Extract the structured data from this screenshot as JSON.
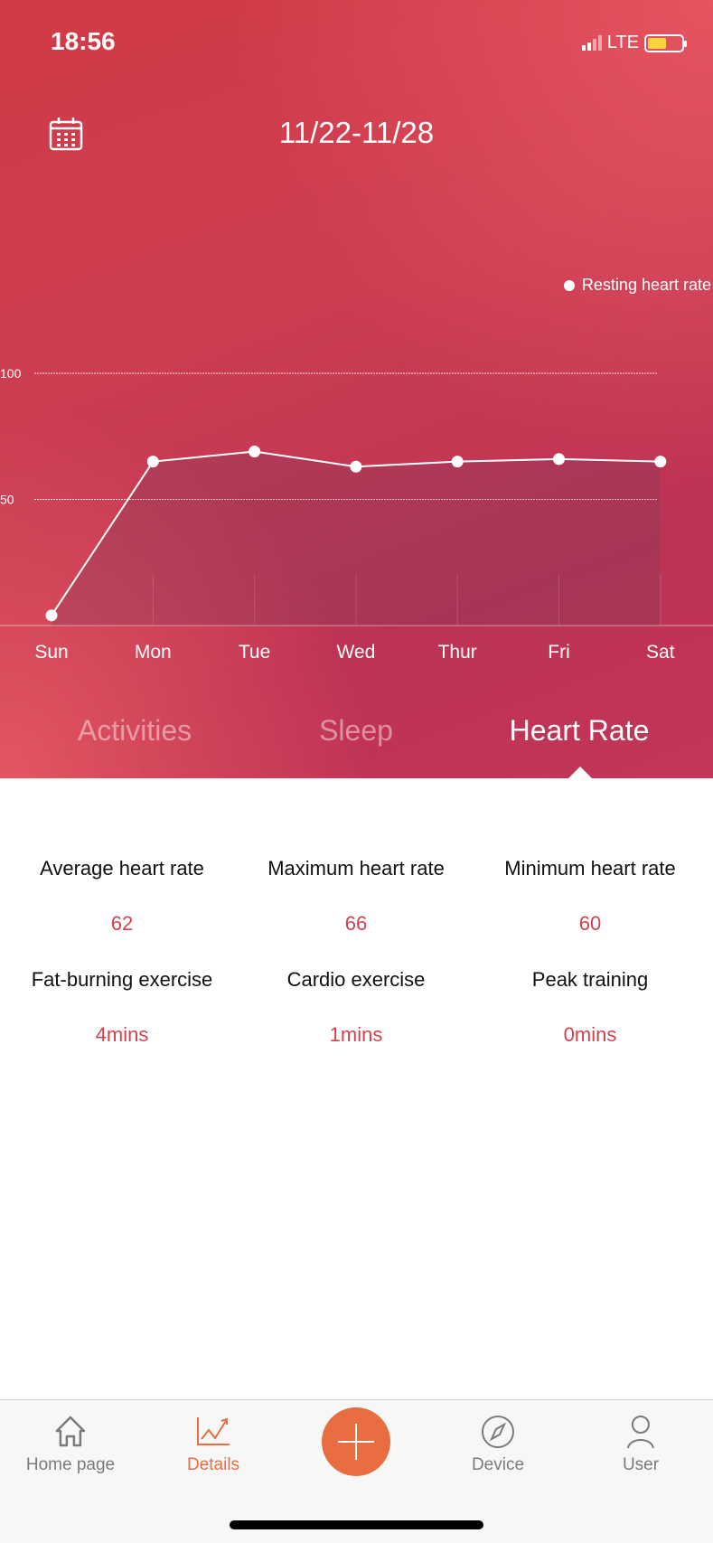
{
  "status_bar": {
    "time": "18:56",
    "network": "LTE",
    "battery_color": "#f7d33e"
  },
  "header": {
    "date_range": "11/22-11/28",
    "calendar_icon": "calendar-icon",
    "legend": "Resting heart rate"
  },
  "chart_data": {
    "type": "line",
    "categories": [
      "Sun",
      "Mon",
      "Tue",
      "Wed",
      "Thur",
      "Fri",
      "Sat"
    ],
    "series": [
      {
        "name": "Resting heart rate",
        "values": [
          4,
          65,
          69,
          63,
          65,
          66,
          65
        ]
      }
    ],
    "yticks": [
      100,
      50
    ],
    "ylim": [
      0,
      100
    ],
    "grid": true,
    "legend_position": "top-right"
  },
  "tabs": [
    {
      "label": "Activities",
      "active": false
    },
    {
      "label": "Sleep",
      "active": false
    },
    {
      "label": "Heart Rate",
      "active": true
    }
  ],
  "stats": [
    {
      "label": "Average heart rate",
      "value": "62"
    },
    {
      "label": "Maximum heart rate",
      "value": "66"
    },
    {
      "label": "Minimum heart rate",
      "value": "60"
    },
    {
      "label": "Fat-burning exercise",
      "value": "4mins"
    },
    {
      "label": "Cardio exercise",
      "value": "1mins"
    },
    {
      "label": "Peak training",
      "value": "0mins"
    }
  ],
  "nav": [
    {
      "label": "Home page",
      "icon": "home-icon"
    },
    {
      "label": "Details",
      "icon": "chart-icon",
      "active": true
    },
    {
      "label": "",
      "icon": "plus-icon"
    },
    {
      "label": "Device",
      "icon": "compass-icon"
    },
    {
      "label": "User",
      "icon": "user-icon"
    }
  ],
  "colors": {
    "accent": "#e86e41",
    "value": "#d5404f"
  }
}
